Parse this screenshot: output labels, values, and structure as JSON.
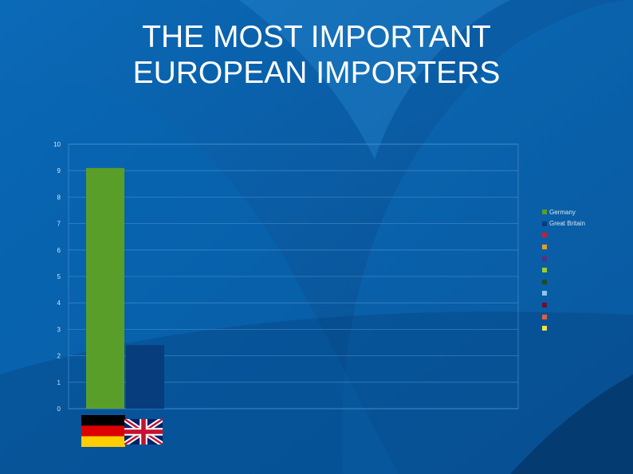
{
  "slide": {
    "title_line1": "THE MOST IMPORTANT",
    "title_line2": "EUROPEAN IMPORTERS"
  },
  "colors": {
    "background": "#0a5da6",
    "germany": "#5a9e2a",
    "great_britain": "#073c7d"
  },
  "chart_data": {
    "type": "bar",
    "categories": [
      "Germany",
      "Great Britain"
    ],
    "values": [
      9.1,
      2.4
    ],
    "colors": [
      "#5a9e2a",
      "#073c7d"
    ],
    "title": "",
    "xlabel": "",
    "ylabel": "",
    "ylim": [
      0,
      10
    ],
    "yticks": [
      "0",
      "1",
      "2",
      "3",
      "4",
      "5",
      "6",
      "7",
      "8",
      "9",
      "10"
    ],
    "grid": true,
    "legend_position": "right",
    "legend": [
      {
        "label": "Germany",
        "color": "#5a9e2a"
      },
      {
        "label": "Great Britain",
        "color": "#073c7d"
      },
      {
        "label": "",
        "color": "#c0203a"
      },
      {
        "label": "",
        "color": "#e69a28"
      },
      {
        "label": "",
        "color": "#5b2c86"
      },
      {
        "label": "",
        "color": "#9ccc2e"
      },
      {
        "label": "",
        "color": "#1f4a2a"
      },
      {
        "label": "",
        "color": "#8dc4ee"
      },
      {
        "label": "",
        "color": "#6b1030"
      },
      {
        "label": "",
        "color": "#e0603a"
      },
      {
        "label": "",
        "color": "#f0e04a"
      }
    ]
  },
  "flags": [
    {
      "country": "Germany",
      "icon": "germany-flag-icon"
    },
    {
      "country": "Great Britain",
      "icon": "uk-flag-icon"
    }
  ]
}
